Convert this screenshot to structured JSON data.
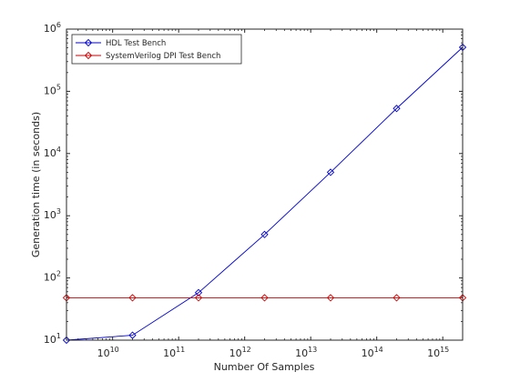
{
  "chart_data": {
    "type": "line",
    "title": "",
    "xlabel": "Number Of Samples",
    "ylabel": "Generation time (in seconds)",
    "x_scale": "log",
    "y_scale": "log",
    "xlim": [
      2000000000.0,
      2000000000000000.0
    ],
    "ylim": [
      10,
      1000000
    ],
    "x_ticks": [
      {
        "value": 10000000000.0,
        "base": "10",
        "exp": "10"
      },
      {
        "value": 100000000000.0,
        "base": "10",
        "exp": "11"
      },
      {
        "value": 1000000000000.0,
        "base": "10",
        "exp": "12"
      },
      {
        "value": 10000000000000.0,
        "base": "10",
        "exp": "13"
      },
      {
        "value": 100000000000000.0,
        "base": "10",
        "exp": "14"
      },
      {
        "value": 1000000000000000.0,
        "base": "10",
        "exp": "15"
      }
    ],
    "y_ticks": [
      {
        "value": 10,
        "base": "10",
        "exp": "1"
      },
      {
        "value": 100,
        "base": "10",
        "exp": "2"
      },
      {
        "value": 1000,
        "base": "10",
        "exp": "3"
      },
      {
        "value": 10000,
        "base": "10",
        "exp": "4"
      },
      {
        "value": 100000,
        "base": "10",
        "exp": "5"
      },
      {
        "value": 1000000,
        "base": "10",
        "exp": "6"
      }
    ],
    "grid": false,
    "legend_position": "top-left",
    "series": [
      {
        "name": "HDL Test Bench",
        "color": "#0000cc",
        "marker": "diamond",
        "x": [
          2000000000.0,
          20000000000.0,
          200000000000.0,
          2000000000000.0,
          20000000000000.0,
          200000000000000.0,
          2000000000000000.0
        ],
        "y": [
          10,
          12,
          58,
          500,
          5000,
          53000,
          510000
        ]
      },
      {
        "name": "SystemVerilog DPI Test Bench",
        "color": "#cc0000",
        "marker": "diamond",
        "x": [
          2000000000.0,
          20000000000.0,
          200000000000.0,
          2000000000000.0,
          20000000000000.0,
          200000000000000.0,
          2000000000000000.0
        ],
        "y": [
          48,
          48,
          48,
          48,
          48,
          48,
          48
        ]
      }
    ]
  }
}
